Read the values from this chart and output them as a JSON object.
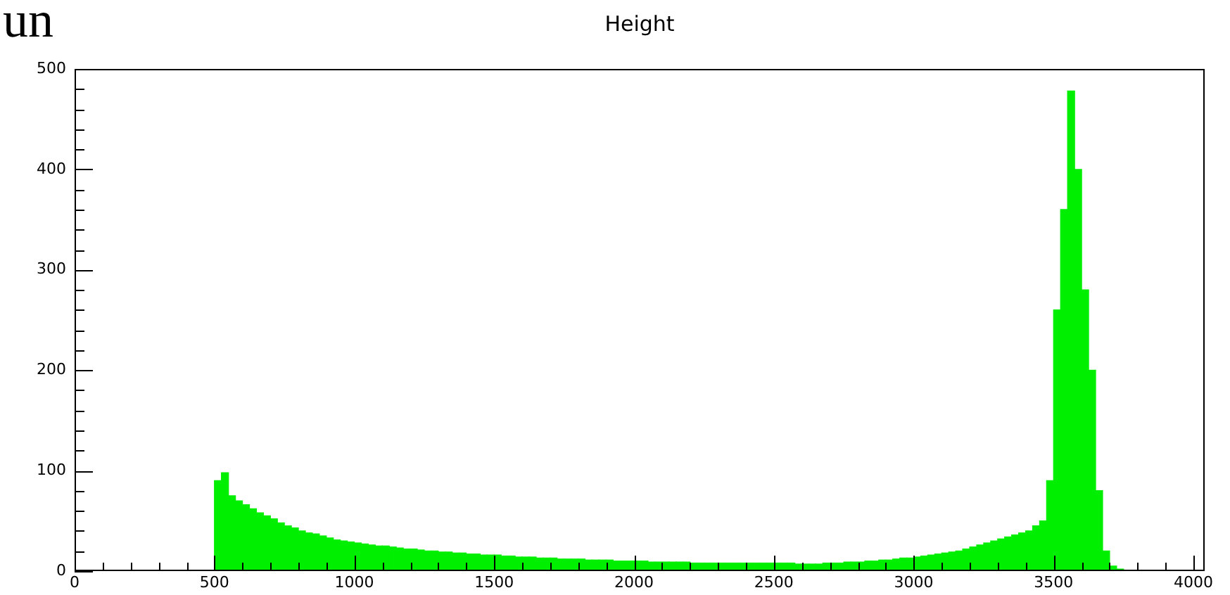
{
  "chart_data": {
    "type": "histogram",
    "title": "Height",
    "annotations": [
      "un"
    ],
    "bins": [
      500,
      525,
      550,
      575,
      600,
      625,
      650,
      675,
      700,
      725,
      750,
      775,
      800,
      825,
      850,
      875,
      900,
      925,
      950,
      975,
      1000,
      1025,
      1050,
      1075,
      1100,
      1125,
      1150,
      1175,
      1200,
      1225,
      1250,
      1275,
      1300,
      1325,
      1350,
      1375,
      1400,
      1425,
      1450,
      1475,
      1500,
      1525,
      1550,
      1575,
      1600,
      1625,
      1650,
      1675,
      1700,
      1725,
      1750,
      1775,
      1800,
      1825,
      1850,
      1875,
      1900,
      1925,
      1950,
      1975,
      2000,
      2025,
      2050,
      2075,
      2100,
      2125,
      2150,
      2175,
      2200,
      2225,
      2250,
      2275,
      2300,
      2325,
      2350,
      2375,
      2400,
      2425,
      2450,
      2475,
      2500,
      2525,
      2550,
      2575,
      2600,
      2625,
      2650,
      2675,
      2700,
      2725,
      2750,
      2775,
      2800,
      2825,
      2850,
      2875,
      2900,
      2925,
      2950,
      2975,
      3000,
      3025,
      3050,
      3075,
      3100,
      3125,
      3150,
      3175,
      3200,
      3225,
      3250,
      3275,
      3300,
      3325,
      3350,
      3375,
      3400,
      3425,
      3450,
      3475,
      3500,
      3525,
      3550,
      3575,
      3600,
      3625,
      3650,
      3675,
      3700,
      3725,
      3750
    ],
    "values": [
      90,
      98,
      75,
      70,
      66,
      62,
      58,
      55,
      52,
      48,
      45,
      43,
      40,
      38,
      37,
      35,
      33,
      31,
      30,
      29,
      28,
      27,
      26,
      25,
      25,
      24,
      23,
      22,
      22,
      21,
      20,
      20,
      19,
      19,
      18,
      18,
      17,
      17,
      16,
      16,
      16,
      15,
      15,
      14,
      14,
      14,
      13,
      13,
      13,
      12,
      12,
      12,
      12,
      11,
      11,
      11,
      11,
      10,
      10,
      10,
      10,
      10,
      9,
      9,
      9,
      9,
      9,
      9,
      8,
      8,
      8,
      8,
      8,
      8,
      8,
      8,
      8,
      8,
      8,
      8,
      8,
      8,
      8,
      7,
      7,
      7,
      7,
      8,
      8,
      8,
      9,
      9,
      9,
      10,
      10,
      11,
      11,
      12,
      13,
      13,
      14,
      15,
      16,
      17,
      18,
      19,
      20,
      22,
      24,
      26,
      28,
      30,
      32,
      34,
      36,
      38,
      40,
      45,
      50,
      90,
      260,
      360,
      478,
      400,
      280,
      200,
      80,
      20,
      5,
      2
    ],
    "color": "#00ee00",
    "xlim": [
      0,
      4040
    ],
    "xticks": [
      0,
      {
        "value": 100,
        "label": null
      },
      {
        "value": 200,
        "label": null
      },
      {
        "value": 300,
        "label": null
      },
      {
        "value": 400,
        "label": null
      },
      500,
      {
        "value": 600,
        "label": null
      },
      {
        "value": 700,
        "label": null
      },
      {
        "value": 800,
        "label": null
      },
      {
        "value": 900,
        "label": null
      },
      1000,
      {
        "value": 1100,
        "label": null
      },
      {
        "value": 1200,
        "label": null
      },
      {
        "value": 1300,
        "label": null
      },
      {
        "value": 1400,
        "label": null
      },
      1500,
      {
        "value": 1600,
        "label": null
      },
      {
        "value": 1700,
        "label": null
      },
      {
        "value": 1800,
        "label": null
      },
      {
        "value": 1900,
        "label": null
      },
      2000,
      {
        "value": 2100,
        "label": null
      },
      {
        "value": 2200,
        "label": null
      },
      {
        "value": 2300,
        "label": null
      },
      {
        "value": 2400,
        "label": null
      },
      2500,
      {
        "value": 2600,
        "label": null
      },
      {
        "value": 2700,
        "label": null
      },
      {
        "value": 2800,
        "label": null
      },
      {
        "value": 2900,
        "label": null
      },
      3000,
      {
        "value": 3100,
        "label": null
      },
      {
        "value": 3200,
        "label": null
      },
      {
        "value": 3300,
        "label": null
      },
      {
        "value": 3400,
        "label": null
      },
      3500,
      {
        "value": 3600,
        "label": null
      },
      {
        "value": 3700,
        "label": null
      },
      {
        "value": 3800,
        "label": null
      },
      {
        "value": 3900,
        "label": null
      },
      4000
    ],
    "ylim": [
      0,
      500
    ],
    "yticks": [
      0,
      {
        "value": 20,
        "label": null
      },
      {
        "value": 40,
        "label": null
      },
      {
        "value": 60,
        "label": null
      },
      {
        "value": 80,
        "label": null
      },
      100,
      {
        "value": 120,
        "label": null
      },
      {
        "value": 140,
        "label": null
      },
      {
        "value": 160,
        "label": null
      },
      {
        "value": 180,
        "label": null
      },
      200,
      {
        "value": 220,
        "label": null
      },
      {
        "value": 240,
        "label": null
      },
      {
        "value": 260,
        "label": null
      },
      {
        "value": 280,
        "label": null
      },
      300,
      {
        "value": 320,
        "label": null
      },
      {
        "value": 340,
        "label": null
      },
      {
        "value": 360,
        "label": null
      },
      {
        "value": 380,
        "label": null
      },
      400,
      {
        "value": 420,
        "label": null
      },
      {
        "value": 440,
        "label": null
      },
      {
        "value": 460,
        "label": null
      },
      {
        "value": 480,
        "label": null
      },
      500
    ],
    "grid": false,
    "legend": false
  }
}
